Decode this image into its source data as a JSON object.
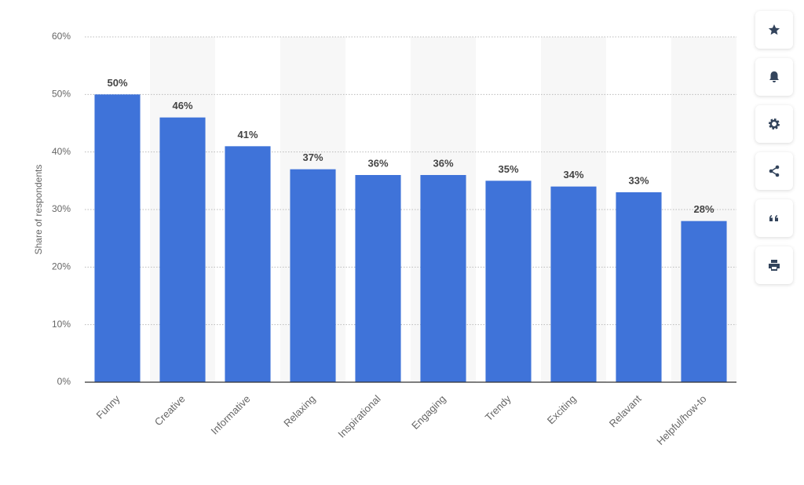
{
  "chart_data": {
    "type": "bar",
    "y_label": "Share of respondents",
    "categories": [
      "Funny",
      "Creative",
      "Informative",
      "Relaxing",
      "Inspirational",
      "Engaging",
      "Trendy",
      "Exciting",
      "Relavant",
      "Helpful/how-to"
    ],
    "values": [
      50,
      46,
      41,
      37,
      36,
      36,
      35,
      34,
      33,
      28
    ],
    "value_labels": [
      "50%",
      "46%",
      "41%",
      "37%",
      "36%",
      "36%",
      "35%",
      "34%",
      "33%",
      "28%"
    ],
    "color": "#3f73d9",
    "ylim": [
      0,
      60
    ],
    "yticks": [
      {
        "value": 0,
        "label": "0%"
      },
      {
        "value": 10,
        "label": "10%"
      },
      {
        "value": 20,
        "label": "20%"
      },
      {
        "value": 30,
        "label": "30%"
      },
      {
        "value": 40,
        "label": "40%"
      },
      {
        "value": 50,
        "label": "50%"
      },
      {
        "value": 60,
        "label": "60%"
      }
    ],
    "grid": true
  }
}
